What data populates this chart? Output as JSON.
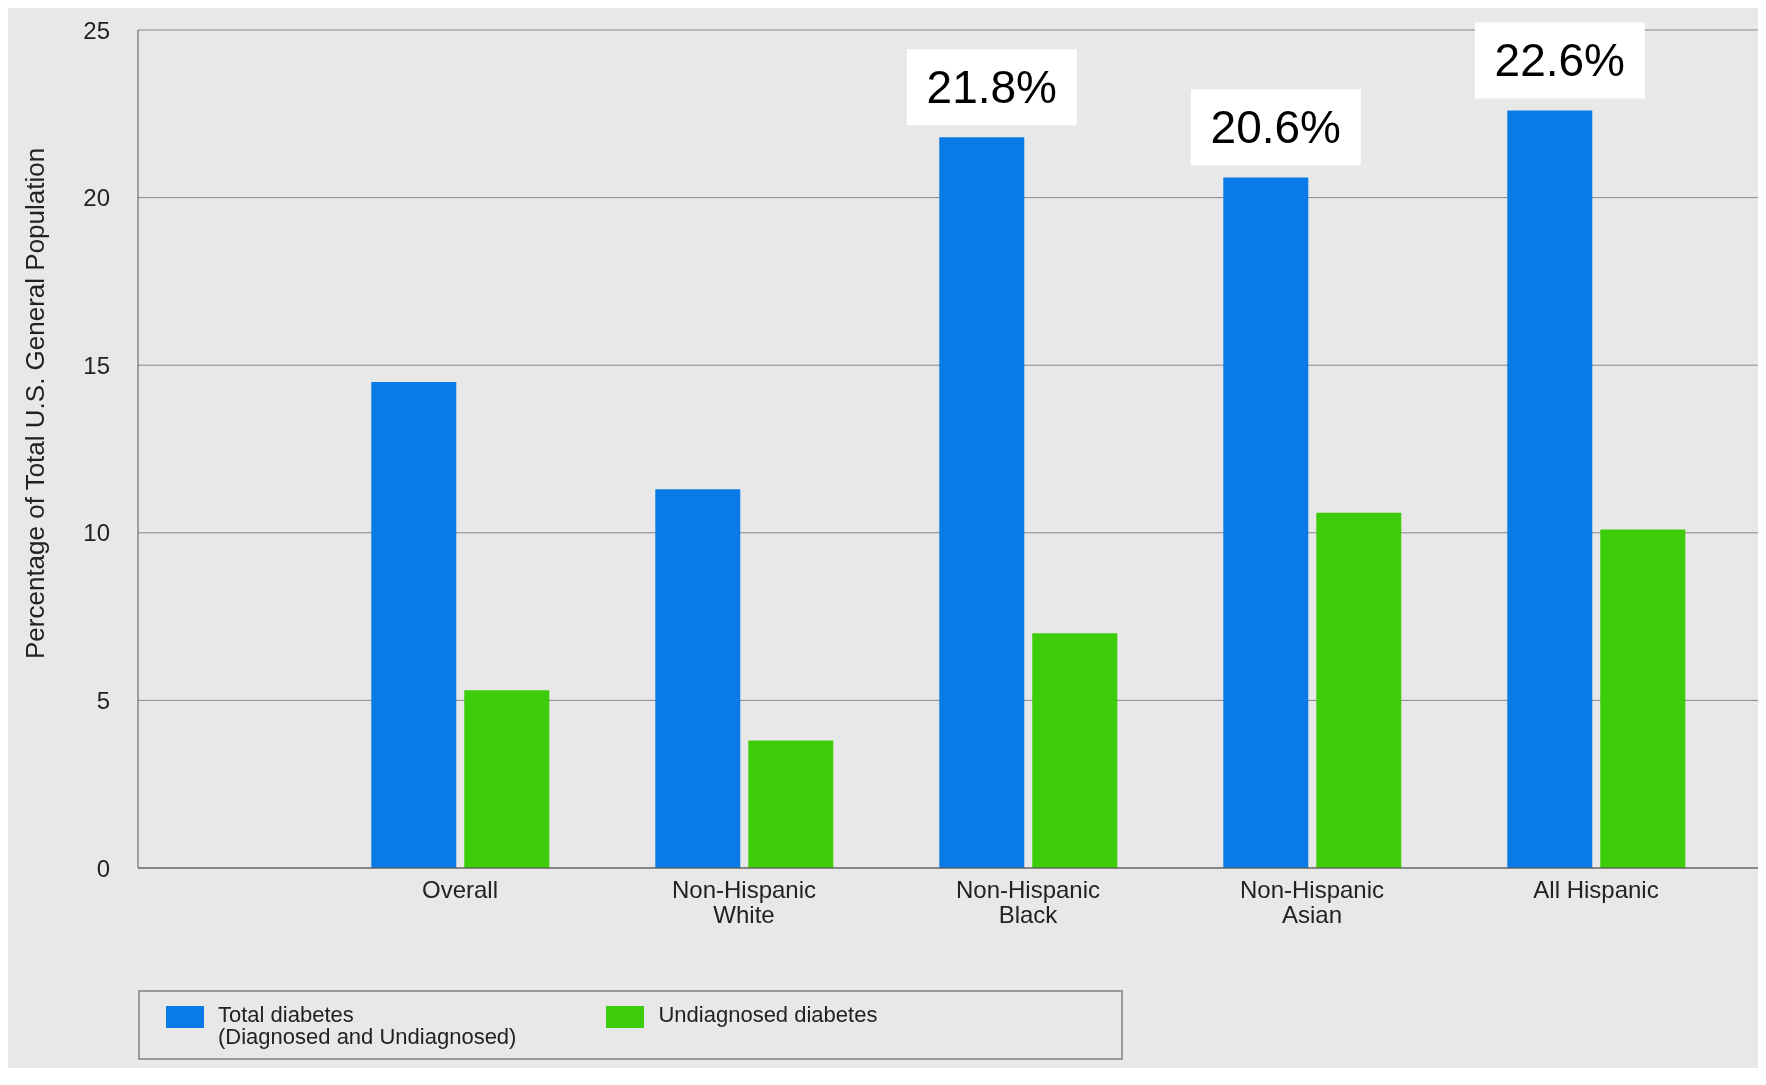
{
  "chart_data": {
    "type": "bar",
    "ylabel": "Percentage of Total U.S. General Population",
    "categories": [
      "Overall",
      "Non-Hispanic\nWhite",
      "Non-Hispanic\nBlack",
      "Non-Hispanic\nAsian",
      "All Hispanic"
    ],
    "series": [
      {
        "name": "Total diabetes\n(Diagnosed and Undiagnosed)",
        "color": "#0a7be6",
        "values": [
          14.5,
          11.3,
          21.8,
          20.6,
          22.6
        ],
        "value_labels": [
          null,
          null,
          "21.8%",
          "20.6%",
          "22.6%"
        ]
      },
      {
        "name": "Undiagnosed diabetes",
        "color": "#3dcc0a",
        "values": [
          5.3,
          3.8,
          7.0,
          10.6,
          10.1
        ]
      }
    ],
    "ylim": [
      0,
      25
    ],
    "yticks": [
      0,
      5,
      10,
      15,
      20,
      25
    ],
    "grid": "y",
    "legend": "bottom left"
  }
}
